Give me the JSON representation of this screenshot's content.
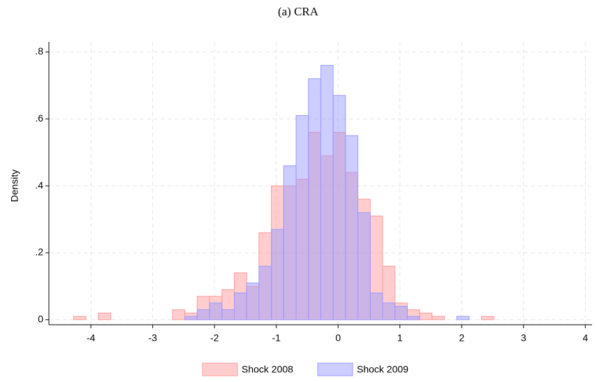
{
  "chart_data": {
    "type": "histogram",
    "title": "(a) CRA",
    "y_label": "Density",
    "bins": [
      -4.28,
      -4.08,
      -3.88,
      -3.68,
      -3.48,
      -3.28,
      -3.08,
      -2.88,
      -2.68,
      -2.48,
      -2.28,
      -2.08,
      -1.88,
      -1.68,
      -1.48,
      -1.28,
      -1.08,
      -0.88,
      -0.68,
      -0.48,
      -0.28,
      -0.08,
      0.12,
      0.32,
      0.52,
      0.72,
      0.92,
      1.12,
      1.32,
      1.52,
      1.72,
      1.92,
      2.12,
      2.32,
      2.52
    ],
    "series": [
      {
        "name": "Shock 2008",
        "color": "#ff9c9c",
        "values": [
          0.01,
          0,
          0.02,
          0,
          0,
          0,
          0,
          0,
          0.03,
          0.02,
          0.07,
          0.07,
          0.09,
          0.14,
          0.1,
          0.26,
          0.4,
          0.4,
          0.42,
          0.56,
          0.49,
          0.56,
          0.44,
          0.36,
          0.31,
          0.16,
          0.05,
          0.03,
          0.02,
          0.01,
          0,
          0,
          0,
          0.01
        ]
      },
      {
        "name": "Shock 2009",
        "color": "#9c9cff",
        "values": [
          0,
          0,
          0,
          0,
          0,
          0,
          0,
          0,
          0,
          0.01,
          0.03,
          0.05,
          0.03,
          0.08,
          0.11,
          0.16,
          0.27,
          0.46,
          0.61,
          0.72,
          0.76,
          0.67,
          0.55,
          0.32,
          0.08,
          0.05,
          0.04,
          0.01,
          0,
          0,
          0,
          0.01,
          0,
          0
        ]
      }
    ],
    "xlim": [
      -4.68,
      4.11
    ],
    "xticks": [
      -4,
      -3,
      -2,
      -1,
      0,
      1,
      2,
      3,
      4
    ],
    "ylim": [
      -0.015,
      0.83
    ],
    "yticks": [
      0,
      {
        "value": 0.2,
        "label": ".2"
      },
      {
        "value": 0.4,
        "label": ".4"
      },
      {
        "value": 0.6,
        "label": ".6"
      },
      {
        "value": 0.8,
        "label": ".8"
      }
    ],
    "grid": true,
    "legend": "bottom"
  }
}
